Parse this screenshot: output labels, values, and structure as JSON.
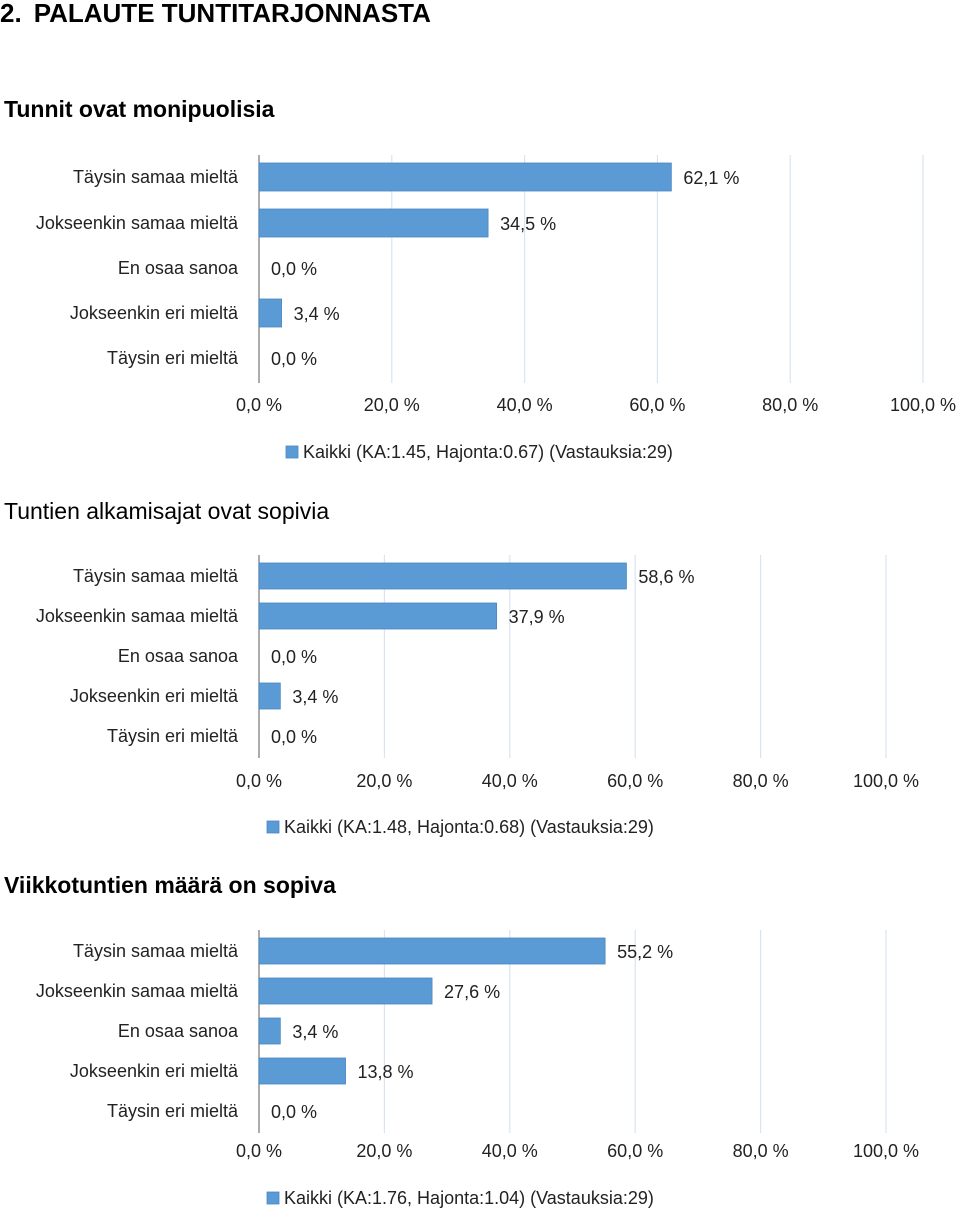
{
  "page": {
    "section_number": "2.",
    "section_title": "PALAUTE TUNTITARJONNASTA"
  },
  "colors": {
    "bar_fill": "#5b9bd5",
    "bar_edge": "#4a86c4",
    "grid": "#d9e4f0",
    "axis": "#808080"
  },
  "chart_data": [
    {
      "type": "bar",
      "orientation": "horizontal",
      "title": "Tunnit ovat monipuolisia",
      "categories": [
        "Täysin samaa mieltä",
        "Jokseenkin samaa mieltä",
        "En osaa sanoa",
        "Jokseenkin eri mieltä",
        "Täysin eri mieltä"
      ],
      "values": [
        62.1,
        34.5,
        0.0,
        3.4,
        0.0
      ],
      "value_labels": [
        "62,1 %",
        "34,5 %",
        "0,0 %",
        "3,4 %",
        "0,0 %"
      ],
      "xlim": [
        0,
        100
      ],
      "x_ticks": [
        "0,0 %",
        "20,0 %",
        "40,0 %",
        "60,0 %",
        "80,0 %",
        "100,0 %"
      ],
      "legend": "Kaikki (KA:1.45, Hajonta:0.67) (Vastauksia:29)",
      "legend_position": "bottom",
      "grid": true
    },
    {
      "type": "bar",
      "orientation": "horizontal",
      "title": "Tuntien alkamisajat ovat sopivia",
      "categories": [
        "Täysin samaa mieltä",
        "Jokseenkin samaa mieltä",
        "En osaa sanoa",
        "Jokseenkin eri mieltä",
        "Täysin eri mieltä"
      ],
      "values": [
        58.6,
        37.9,
        0.0,
        3.4,
        0.0
      ],
      "value_labels": [
        "58,6 %",
        "37,9 %",
        "0,0 %",
        "3,4 %",
        "0,0 %"
      ],
      "xlim": [
        0,
        100
      ],
      "x_ticks": [
        "0,0 %",
        "20,0 %",
        "40,0 %",
        "60,0 %",
        "80,0 %",
        "100,0 %"
      ],
      "legend": "Kaikki (KA:1.48, Hajonta:0.68) (Vastauksia:29)",
      "legend_position": "bottom",
      "grid": true
    },
    {
      "type": "bar",
      "orientation": "horizontal",
      "title": "Viikkotuntien määrä on sopiva",
      "categories": [
        "Täysin samaa mieltä",
        "Jokseenkin samaa mieltä",
        "En osaa sanoa",
        "Jokseenkin eri mieltä",
        "Täysin eri mieltä"
      ],
      "values": [
        55.2,
        27.6,
        3.4,
        13.8,
        0.0
      ],
      "value_labels": [
        "55,2 %",
        "27,6 %",
        "3,4 %",
        "13,8 %",
        "0,0 %"
      ],
      "xlim": [
        0,
        100
      ],
      "x_ticks": [
        "0,0 %",
        "20,0 %",
        "40,0 %",
        "60,0 %",
        "80,0 %",
        "100,0 %"
      ],
      "legend": "Kaikki (KA:1.76, Hajonta:1.04) (Vastauksia:29)",
      "legend_position": "bottom",
      "grid": true
    }
  ]
}
